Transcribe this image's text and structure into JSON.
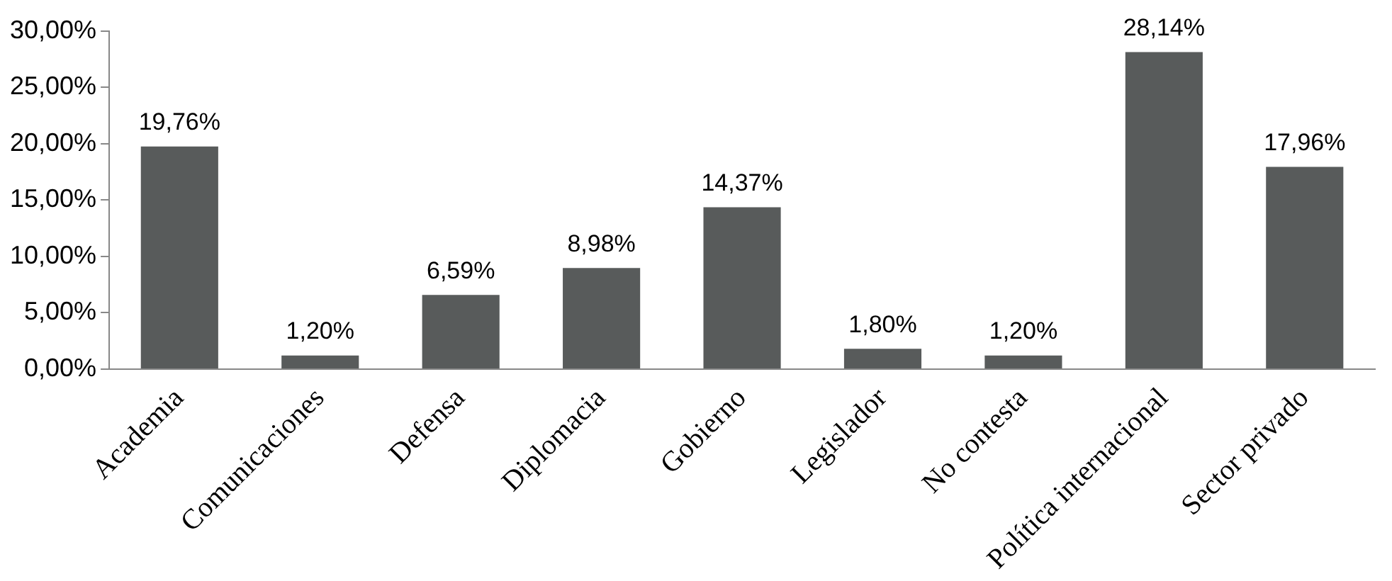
{
  "chart_data": {
    "type": "bar",
    "categories": [
      "Academia",
      "Comunicaciones",
      "Defensa",
      "Diplomacia",
      "Gobierno",
      "Legislador",
      "No contesta",
      "Política internacional",
      "Sector privado"
    ],
    "values": [
      19.76,
      1.2,
      6.59,
      8.98,
      14.37,
      1.8,
      1.2,
      28.14,
      17.96
    ],
    "value_labels": [
      "19,76%",
      "1,20%",
      "6,59%",
      "8,98%",
      "14,37%",
      "1,80%",
      "1,20%",
      "28,14%",
      "17,96%"
    ],
    "color": "#585b5b",
    "ylim": [
      0,
      30
    ],
    "yticks": [
      {
        "value": 0,
        "label": "0,00%"
      },
      {
        "value": 5,
        "label": "5,00%"
      },
      {
        "value": 10,
        "label": "10,00%"
      },
      {
        "value": 15,
        "label": "15,00%"
      },
      {
        "value": 20,
        "label": "20,00%"
      },
      {
        "value": 25,
        "label": "25,00%"
      },
      {
        "value": 30,
        "label": "30,00%"
      }
    ]
  }
}
